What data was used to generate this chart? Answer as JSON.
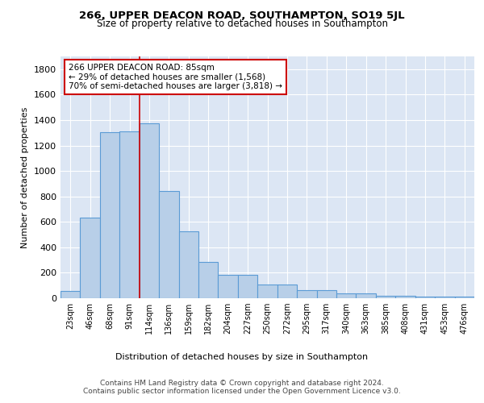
{
  "title1": "266, UPPER DEACON ROAD, SOUTHAMPTON, SO19 5JL",
  "title2": "Size of property relative to detached houses in Southampton",
  "xlabel": "Distribution of detached houses by size in Southampton",
  "ylabel": "Number of detached properties",
  "categories": [
    "23sqm",
    "46sqm",
    "68sqm",
    "91sqm",
    "114sqm",
    "136sqm",
    "159sqm",
    "182sqm",
    "204sqm",
    "227sqm",
    "250sqm",
    "272sqm",
    "295sqm",
    "317sqm",
    "340sqm",
    "363sqm",
    "385sqm",
    "408sqm",
    "431sqm",
    "453sqm",
    "476sqm"
  ],
  "values": [
    55,
    635,
    1305,
    1310,
    1375,
    845,
    525,
    285,
    185,
    185,
    110,
    110,
    65,
    65,
    35,
    35,
    20,
    20,
    10,
    10,
    15
  ],
  "bar_color": "#b8cfe8",
  "bar_edge_color": "#5b9bd5",
  "background_color": "#dce6f4",
  "grid_color": "#ffffff",
  "vline_x": 3.5,
  "vline_color": "#cc0000",
  "annotation_text": "266 UPPER DEACON ROAD: 85sqm\n← 29% of detached houses are smaller (1,568)\n70% of semi-detached houses are larger (3,818) →",
  "annotation_box_color": "#ffffff",
  "annotation_box_edge": "#cc0000",
  "footer": "Contains HM Land Registry data © Crown copyright and database right 2024.\nContains public sector information licensed under the Open Government Licence v3.0.",
  "ylim": [
    0,
    1900
  ],
  "yticks": [
    0,
    200,
    400,
    600,
    800,
    1000,
    1200,
    1400,
    1600,
    1800
  ]
}
